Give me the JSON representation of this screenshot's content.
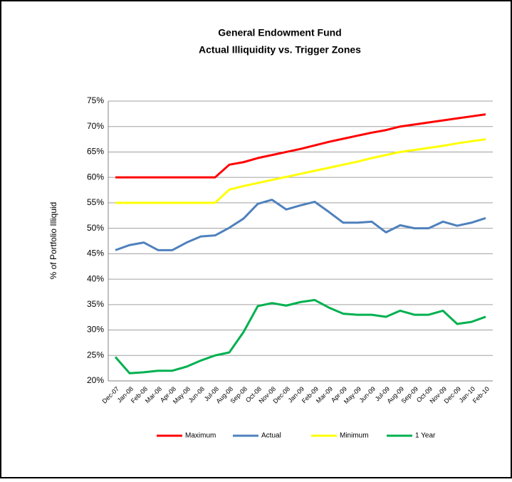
{
  "chart_data": {
    "type": "line",
    "title": "General Endowment Fund",
    "subtitle": "Actual Illiquidity vs. Trigger Zones",
    "y_label": "% of Portfolio Illiquid",
    "categories": [
      "Dec-07",
      "Jan-08",
      "Feb-08",
      "Mar-08",
      "Apr-08",
      "May-08",
      "Jun-08",
      "Jul-08",
      "Aug-08",
      "Sep-08",
      "Oct-08",
      "Nov-08",
      "Dec-08",
      "Jan-09",
      "Feb-09",
      "Mar-09",
      "Apr-09",
      "May-09",
      "Jun-09",
      "Jul-09",
      "Aug-09",
      "Sep-09",
      "Oct-09",
      "Nov-09",
      "Dec-09",
      "Jan-10",
      "Feb-10"
    ],
    "series": [
      {
        "name": "Maximum",
        "color": "#ff0000",
        "values": [
          60,
          60,
          60,
          60,
          60,
          60,
          60,
          60,
          62.5,
          63,
          63.8,
          64.4,
          65,
          65.6,
          66.3,
          67,
          67.6,
          68.2,
          68.8,
          69.3,
          70,
          70.4,
          70.8,
          71.2,
          71.6,
          72,
          72.4
        ]
      },
      {
        "name": "Actual",
        "color": "#4f81bd",
        "values": [
          45.7,
          46.7,
          47.2,
          45.7,
          45.7,
          47.2,
          48.4,
          48.6,
          50.1,
          51.9,
          54.8,
          55.6,
          53.7,
          54.5,
          55.2,
          53.2,
          51.1,
          51.1,
          51.3,
          49.2,
          50.6,
          50,
          50,
          51.3,
          50.5,
          51.1,
          52
        ]
      },
      {
        "name": "Minimum",
        "color": "#ffff00",
        "values": [
          55,
          55,
          55,
          55,
          55,
          55,
          55,
          55,
          57.6,
          58.3,
          58.9,
          59.5,
          60.1,
          60.7,
          61.3,
          61.9,
          62.5,
          63.1,
          63.8,
          64.4,
          65,
          65.4,
          65.8,
          66.2,
          66.7,
          67.1,
          67.5
        ]
      },
      {
        "name": "1 Year",
        "color": "#00b050",
        "values": [
          24.7,
          21.5,
          21.7,
          22,
          22,
          22.8,
          24,
          25,
          25.6,
          29.6,
          34.7,
          35.3,
          34.8,
          35.5,
          35.9,
          34.4,
          33.2,
          33,
          33,
          32.6,
          33.8,
          33,
          33,
          33.8,
          31.2,
          31.6,
          32.6
        ]
      }
    ],
    "ylim": [
      20,
      75
    ],
    "yticks": [
      {
        "value": 20,
        "label": "20%"
      },
      {
        "value": 25,
        "label": "25%"
      },
      {
        "value": 30,
        "label": "30%"
      },
      {
        "value": 35,
        "label": "35%"
      },
      {
        "value": 40,
        "label": "40%"
      },
      {
        "value": 45,
        "label": "45%"
      },
      {
        "value": 50,
        "label": "50%"
      },
      {
        "value": 55,
        "label": "55%"
      },
      {
        "value": 60,
        "label": "60%"
      },
      {
        "value": 65,
        "label": "65%"
      },
      {
        "value": 70,
        "label": "70%"
      },
      {
        "value": 75,
        "label": "75%"
      }
    ],
    "grid": true
  }
}
